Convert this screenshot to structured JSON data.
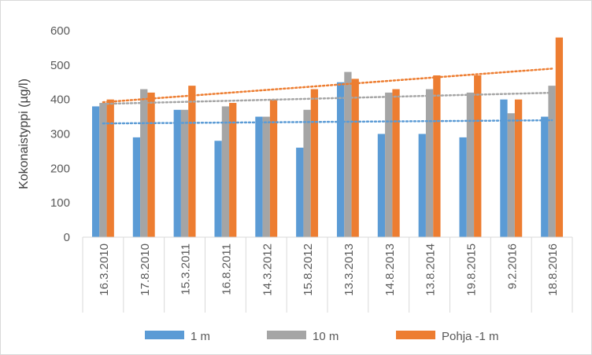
{
  "chart_data": {
    "type": "bar",
    "title": "",
    "xlabel": "",
    "ylabel": "Kokonaistyppi (µg/l)",
    "ylim": [
      0,
      600
    ],
    "yticks": [
      0,
      100,
      200,
      300,
      400,
      500,
      600
    ],
    "categories": [
      "16.3.2010",
      "17.8.2010",
      "15.3.2011",
      "16.8.2011",
      "14.3.2012",
      "15.8.2012",
      "13.3.2013",
      "14.8.2013",
      "13.8.2014",
      "19.8.2015",
      "9.2.2016",
      "18.8.2016"
    ],
    "series": [
      {
        "name": "1 m",
        "color": "#5b9bd5",
        "values": [
          380,
          290,
          370,
          280,
          350,
          260,
          450,
          300,
          300,
          290,
          400,
          350
        ]
      },
      {
        "name": "10 m",
        "color": "#a5a5a5",
        "values": [
          390,
          430,
          370,
          380,
          350,
          370,
          480,
          420,
          430,
          420,
          360,
          440
        ]
      },
      {
        "name": "Pohja -1 m",
        "color": "#ed7d31",
        "values": [
          400,
          420,
          440,
          390,
          400,
          430,
          460,
          430,
          470,
          470,
          400,
          580
        ]
      }
    ],
    "trendlines": [
      {
        "series": "1 m",
        "type": "linear",
        "style": "dotted"
      },
      {
        "series": "10 m",
        "type": "linear",
        "style": "dotted"
      },
      {
        "series": "Pohja -1 m",
        "type": "linear",
        "style": "dotted"
      }
    ],
    "legend_position": "bottom",
    "grid": false
  }
}
